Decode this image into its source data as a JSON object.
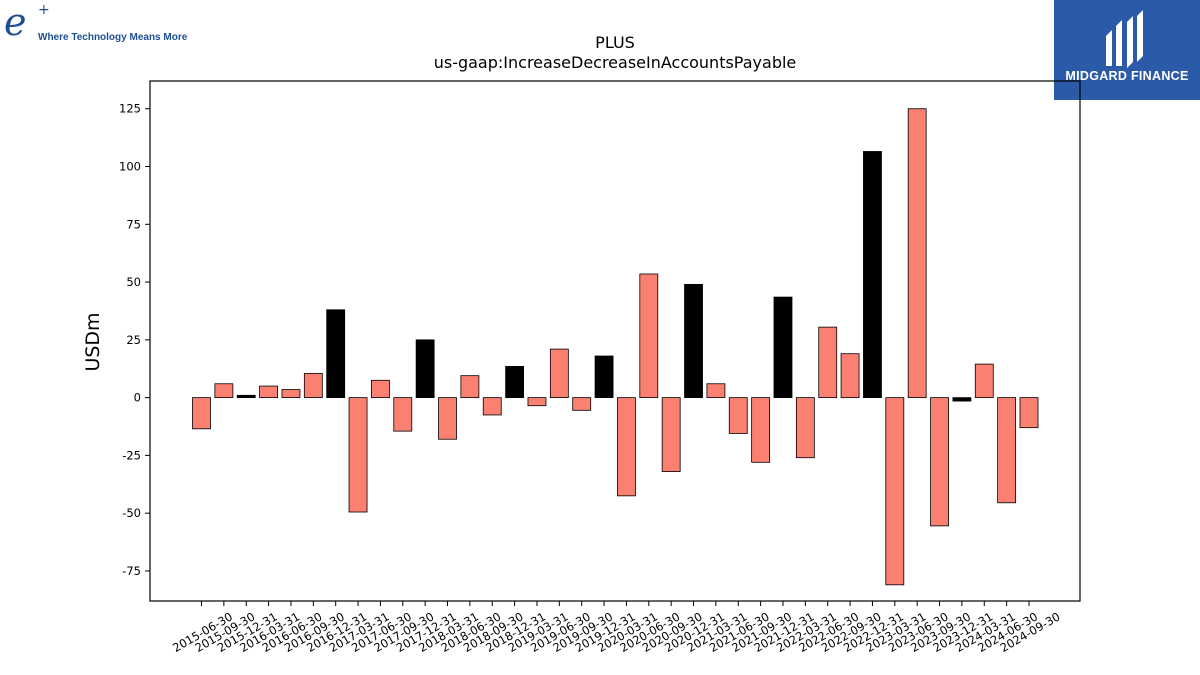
{
  "logo_left": {
    "mark": "e",
    "plus": "+",
    "tagline": "Where Technology Means More"
  },
  "logo_right": {
    "brand": "MIDGARD FINANCE"
  },
  "chart_data": {
    "type": "bar",
    "title": "PLUS",
    "subtitle": "us-gaap:IncreaseDecreaseInAccountsPayable",
    "xlabel": "",
    "ylabel": "USDm",
    "ylim": [
      -88,
      137
    ],
    "yticks": [
      -75,
      -50,
      -25,
      0,
      25,
      50,
      75,
      100,
      125
    ],
    "grid": false,
    "colors": {
      "positive_highlight": "#000000",
      "default": "#fa8072",
      "edge": "#000000"
    },
    "categories": [
      "2015-06-30",
      "2015-09-30",
      "2015-12-31",
      "2016-03-31",
      "2016-06-30",
      "2016-09-30",
      "2016-12-31",
      "2017-03-31",
      "2017-06-30",
      "2017-09-30",
      "2017-12-31",
      "2018-03-31",
      "2018-06-30",
      "2018-09-30",
      "2018-12-31",
      "2019-03-31",
      "2019-06-30",
      "2019-09-30",
      "2019-12-31",
      "2020-03-31",
      "2020-06-30",
      "2020-09-30",
      "2020-12-31",
      "2021-03-31",
      "2021-06-30",
      "2021-09-30",
      "2021-12-31",
      "2022-03-31",
      "2022-06-30",
      "2022-09-30",
      "2022-12-31",
      "2023-03-31",
      "2023-06-30",
      "2023-09-30",
      "2023-12-31",
      "2024-03-31",
      "2024-06-30",
      "2024-09-30"
    ],
    "values": [
      -13.5,
      6,
      1,
      5,
      3.5,
      10.5,
      38,
      -49.5,
      7.5,
      -14.5,
      25,
      -18,
      9.5,
      -7.5,
      13.5,
      -3.5,
      21,
      -5.5,
      18,
      -42.5,
      53.5,
      -32,
      49,
      6,
      -15.5,
      -28,
      43.5,
      -26,
      30.5,
      19,
      106.5,
      -81,
      125,
      -55.5,
      -1.5,
      14.5,
      -45.5,
      -13
    ],
    "highlight": [
      false,
      false,
      true,
      false,
      false,
      false,
      true,
      false,
      false,
      false,
      true,
      false,
      false,
      false,
      true,
      false,
      false,
      false,
      true,
      false,
      false,
      false,
      true,
      false,
      false,
      false,
      true,
      false,
      false,
      false,
      true,
      false,
      false,
      false,
      true,
      false,
      false,
      false
    ]
  }
}
